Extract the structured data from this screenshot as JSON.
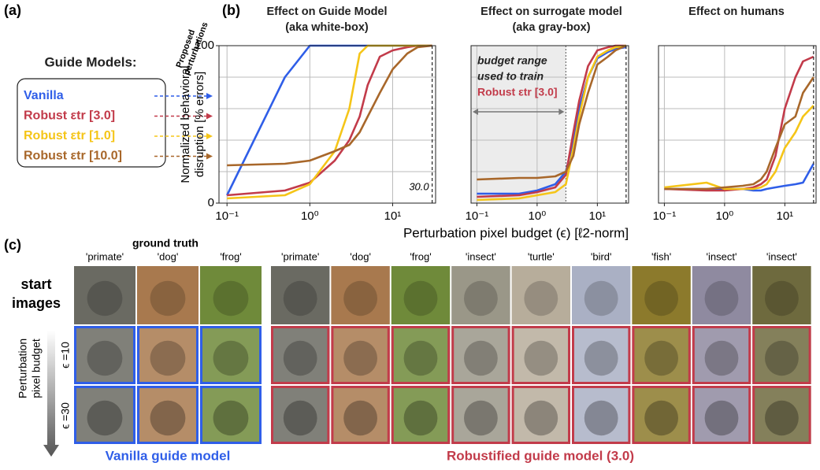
{
  "panel_labels": [
    "(a)",
    "(b)",
    "(c)"
  ],
  "legend_title": "Guide Models:",
  "legend_note": [
    "Proposed",
    "perturbations"
  ],
  "shared_xlabel": "Perturbation pixel budget (ϵ) [ℓ2-norm]",
  "chart_data": [
    {
      "type": "line",
      "title": [
        "Effect on Guide Model",
        "(aka white-box)"
      ],
      "ylabel": [
        "Normalized behavioral",
        "disruption [% errors]"
      ],
      "xscale": "log",
      "xlim": [
        0.08,
        33
      ],
      "ylim": [
        0,
        100
      ],
      "xticks": [
        {
          "value": 0.1,
          "label": "10⁻¹"
        },
        {
          "value": 1,
          "label": "10⁰"
        },
        {
          "value": 10,
          "label": "10¹"
        }
      ],
      "yticks": [
        0,
        100
      ],
      "gridlines": [
        20,
        40,
        60,
        80
      ],
      "vline": 30,
      "vline_label": "30.0",
      "x": [
        0.1,
        0.5,
        1,
        2,
        3,
        4,
        5,
        7,
        10,
        15,
        20,
        30
      ],
      "series": [
        {
          "name": "Vanilla",
          "color": "#2f5ee8",
          "values": [
            5,
            80,
            100,
            100,
            100,
            100,
            100,
            100,
            100,
            100,
            100,
            100
          ]
        },
        {
          "name": "Robust εtr [3.0]",
          "color": "#c23b4a",
          "values": [
            5,
            8,
            13,
            27,
            40,
            55,
            75,
            93,
            97,
            99,
            100,
            100
          ]
        },
        {
          "name": "Robust εtr [1.0]",
          "color": "#f5c518",
          "values": [
            3,
            5,
            12,
            33,
            60,
            95,
            100,
            100,
            100,
            100,
            100,
            100
          ]
        },
        {
          "name": "Robust εtr [10.0]",
          "color": "#a8672a",
          "values": [
            24,
            25,
            27,
            33,
            37,
            45,
            55,
            70,
            85,
            95,
            99,
            100
          ]
        }
      ]
    },
    {
      "type": "line",
      "title": [
        "Effect on surrogate model",
        "(aka gray-box)"
      ],
      "xscale": "log",
      "xlim": [
        0.08,
        33
      ],
      "ylim": [
        0,
        100
      ],
      "xticks": [
        {
          "value": 0.1,
          "label": "10⁻¹"
        },
        {
          "value": 1,
          "label": "10⁰"
        },
        {
          "value": 10,
          "label": "10¹"
        }
      ],
      "gridlines": [
        20,
        40,
        60,
        80
      ],
      "vline": 30,
      "train_budget": 3,
      "train_note": [
        "budget range",
        "used to train",
        "Robust εtr [3.0]"
      ],
      "x": [
        0.1,
        0.5,
        1,
        2,
        3,
        4,
        5,
        7,
        10,
        15,
        20,
        30
      ],
      "series": [
        {
          "name": "Vanilla",
          "color": "#2f5ee8",
          "values": [
            6,
            6,
            8,
            12,
            20,
            40,
            60,
            80,
            92,
            96,
            98,
            99
          ]
        },
        {
          "name": "Robust εtr [3.0]",
          "color": "#c23b4a",
          "values": [
            4,
            5,
            7,
            10,
            18,
            45,
            65,
            87,
            97,
            99,
            100,
            100
          ]
        },
        {
          "name": "Robust εtr [1.0]",
          "color": "#f5c518",
          "values": [
            2,
            3,
            5,
            7,
            12,
            35,
            55,
            80,
            93,
            97,
            99,
            100
          ]
        },
        {
          "name": "Robust εtr [10.0]",
          "color": "#a8672a",
          "values": [
            15,
            16,
            16,
            17,
            20,
            30,
            50,
            70,
            88,
            93,
            97,
            100
          ]
        }
      ]
    },
    {
      "type": "line",
      "title": [
        "Effect on humans"
      ],
      "xscale": "log",
      "xlim": [
        0.08,
        33
      ],
      "ylim": [
        0,
        100
      ],
      "xticks": [
        {
          "value": 0.1,
          "label": "10⁻¹"
        },
        {
          "value": 1,
          "label": "10⁰"
        },
        {
          "value": 10,
          "label": "10¹"
        }
      ],
      "gridlines": [
        20,
        40,
        60,
        80
      ],
      "vline": 30,
      "x": [
        0.1,
        0.5,
        1,
        2,
        3,
        4,
        5,
        7,
        10,
        15,
        20,
        30
      ],
      "series": [
        {
          "name": "Vanilla",
          "color": "#2f5ee8",
          "values": [
            9,
            9,
            9,
            9,
            8,
            8,
            9,
            10,
            11,
            12,
            13,
            25
          ]
        },
        {
          "name": "Robust εtr [3.0]",
          "color": "#c23b4a",
          "values": [
            9,
            8,
            8,
            9,
            10,
            12,
            15,
            30,
            60,
            80,
            90,
            93
          ]
        },
        {
          "name": "Robust εtr [1.0]",
          "color": "#f5c518",
          "values": [
            10,
            13,
            9,
            9,
            9,
            10,
            12,
            20,
            35,
            45,
            55,
            62
          ]
        },
        {
          "name": "Robust εtr [10.0]",
          "color": "#a8672a",
          "values": [
            9,
            9,
            10,
            11,
            12,
            15,
            20,
            35,
            50,
            55,
            70,
            80
          ]
        }
      ]
    }
  ],
  "images": {
    "ground_truth_label": "ground truth",
    "vanilla_labels": [
      "'primate'",
      "'dog'",
      "'frog'"
    ],
    "robust_labels": [
      "'primate'",
      "'dog'",
      "'frog'",
      "'insect'",
      "'turtle'",
      "'bird'",
      "'fish'",
      "'insect'",
      "'insect'"
    ],
    "start_label": [
      "start",
      "images"
    ],
    "budget_rows": [
      "ϵ =10",
      "ϵ =30"
    ],
    "budget_axis": [
      "Perturbation",
      "pixel budget"
    ],
    "vanilla_caption": "Vanilla guide model",
    "robust_caption": "Robustified guide model (3.0)"
  }
}
